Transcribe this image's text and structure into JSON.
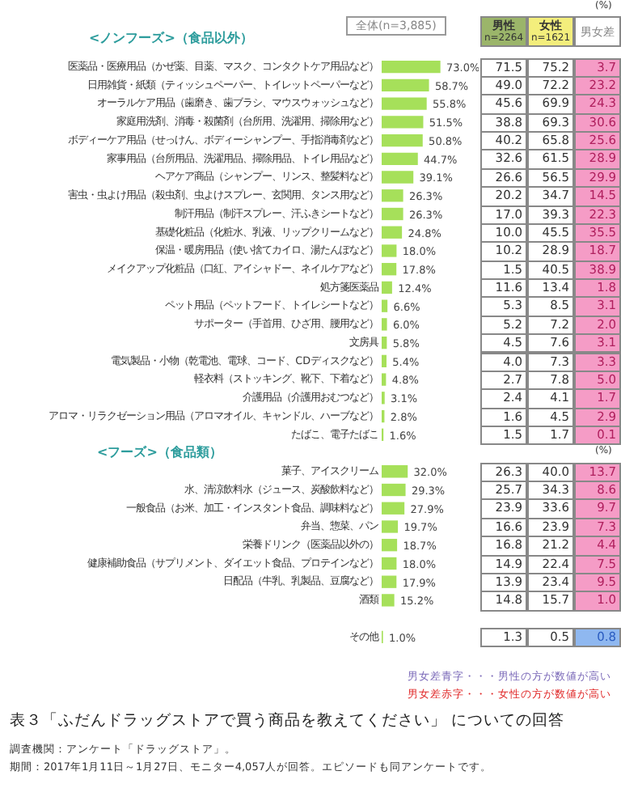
{
  "chart_data": {
    "type": "bar",
    "orientation": "horizontal",
    "title": "表３「ふだんドラッグストアで買う商品を教えてください」 についての回答",
    "categories": [
      "医薬品・医療用品（かぜ薬、目薬、マスク、コンタクトケア用品など）",
      "日用雑貨・紙類（ティッシュペーパー、トイレットペーパーなど）",
      "オーラルケア用品（歯磨き、歯ブラシ、マウスウォッシュなど）",
      "家庭用洗剤、消毒・殺菌剤（台所用、洗濯用、掃除用など）",
      "ボディーケア用品（せっけん、ボディーシャンプー、手指消毒剤など）",
      "家事用品（台所用品、洗濯用品、掃除用品、トイレ用品など）",
      "ヘアケア商品（シャンプー、リンス、整髪料など）",
      "害虫・虫よけ用品（殺虫剤、虫よけスプレー、玄関用、タンス用など）",
      "制汗用品（制汗スプレー、汗ふきシートなど）",
      "基礎化粧品（化粧水、乳液、リップクリームなど）",
      "保温・暖房用品（使い捨てカイロ、湯たんぽなど）",
      "メイクアップ化粧品（口紅、アイシャドー、ネイルケアなど）",
      "処方箋医薬品",
      "ペット用品（ペットフード、トイレシートなど）",
      "サポーター（手首用、ひざ用、腰用など）",
      "文房具",
      "電気製品・小物（乾電池、電球、コード、CDディスクなど）",
      "軽衣料（ストッキング、靴下、下着など）",
      "介護用品（介護用おむつなど）",
      "アロマ・リラクゼーション用品（アロマオイル、キャンドル、ハーブなど）",
      "たばこ、電子たばこ",
      "菓子、アイスクリーム",
      "水、清涼飲料水（ジュース、炭酸飲料など）",
      "一般食品（お米、加工・インスタント食品、調味料など）",
      "弁当、惣菜、パン",
      "栄養ドリンク（医薬品以外の）",
      "健康補助食品（サプリメント、ダイエット食品、プロテインなど）",
      "日配品（牛乳、乳製品、豆腐など）",
      "酒類",
      "その他"
    ],
    "series": [
      {
        "type": "bar",
        "name": "全体(n=3,885)",
        "color": "#a6e05a",
        "values": [
          73.0,
          58.7,
          55.8,
          51.5,
          50.8,
          44.7,
          39.1,
          26.3,
          26.3,
          24.8,
          18.0,
          17.8,
          12.4,
          6.6,
          6.0,
          5.8,
          5.4,
          4.8,
          3.1,
          2.8,
          1.6,
          32.0,
          29.3,
          27.9,
          19.7,
          18.7,
          18.0,
          17.9,
          15.2,
          1.0
        ],
        "value_labels": [
          "73.0%",
          "58.7%",
          "55.8%",
          "51.5%",
          "50.8%",
          "44.7%",
          "39.1%",
          "26.3%",
          "26.3%",
          "24.8%",
          "18.0%",
          "17.8%",
          "12.4%",
          "6.6%",
          "6.0%",
          "5.8%",
          "5.4%",
          "4.8%",
          "3.1%",
          "2.8%",
          "1.6%",
          "32.0%",
          "29.3%",
          "27.9%",
          "19.7%",
          "18.7%",
          "18.0%",
          "17.9%",
          "15.2%",
          "1.0%"
        ]
      }
    ],
    "annotations": [
      "<ノンフーズ>（食品以外）",
      "<フーズ>（食品類）",
      "(%)",
      "(%)",
      "n=2264",
      "n=1621",
      "男女差青字・・・男性の方が数値が高い",
      "男女差赤字・・・女性の方が数値が高い",
      "調査機関：アンケート「ドラッグストア」。",
      "期間：2017年1月11日～1月27日、モニター4,057人が回答。エピソードも同アンケートです。",
      "男性",
      "女性",
      "男女差",
      "71.5",
      "75.2",
      "3.7",
      "49.0",
      "72.2",
      "23.2",
      "45.6",
      "69.9",
      "24.3",
      "38.8",
      "69.3",
      "30.6",
      "40.2",
      "65.8",
      "25.6",
      "32.6",
      "61.5",
      "28.9",
      "26.6",
      "56.5",
      "29.9",
      "20.2",
      "34.7",
      "14.5",
      "17.0",
      "39.3",
      "22.3",
      "10.0",
      "45.5",
      "35.5",
      "10.2",
      "28.9",
      "18.7",
      "1.5",
      "40.5",
      "38.9",
      "11.6",
      "13.4",
      "1.8",
      "5.3",
      "8.5",
      "3.1",
      "5.2",
      "7.2",
      "2.0",
      "4.5",
      "7.6",
      "3.1",
      "4.0",
      "7.3",
      "3.3",
      "2.7",
      "7.8",
      "5.0",
      "2.4",
      "4.1",
      "1.7",
      "1.6",
      "4.5",
      "2.9",
      "1.5",
      "1.7",
      "0.1",
      "26.3",
      "40.0",
      "13.7",
      "25.7",
      "34.3",
      "8.6",
      "23.9",
      "33.6",
      "9.7",
      "16.6",
      "23.9",
      "7.3",
      "16.8",
      "21.2",
      "4.4",
      "14.9",
      "22.4",
      "7.5",
      "13.9",
      "23.4",
      "9.5",
      "14.8",
      "15.7",
      "1.0",
      "1.3",
      "0.5",
      "0.8"
    ],
    "grid": false,
    "legend": false
  }
}
